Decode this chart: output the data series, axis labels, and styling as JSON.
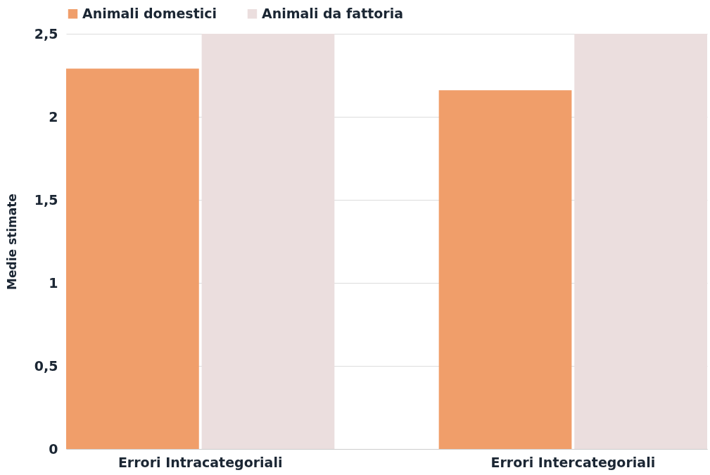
{
  "chart_data": {
    "type": "bar",
    "ylabel": "Medie stimate",
    "categories": [
      "Errori Intracategoriali",
      "Errori Intercategoriali"
    ],
    "series": [
      {
        "name": "Animali domestici",
        "color": "#f09e6a",
        "values": [
          2.29,
          2.16
        ]
      },
      {
        "name": "Animali da fattoria",
        "color": "#ebdede",
        "values": [
          2.5,
          2.5
        ]
      }
    ],
    "ylim": [
      0,
      2.5
    ],
    "yticks": [
      0,
      {
        "value": 0.5,
        "label": "0,5"
      },
      1,
      {
        "value": 1.5,
        "label": "1,5"
      },
      2,
      {
        "value": 2.5,
        "label": "2,5"
      }
    ],
    "grid": "y",
    "legend": "top"
  }
}
